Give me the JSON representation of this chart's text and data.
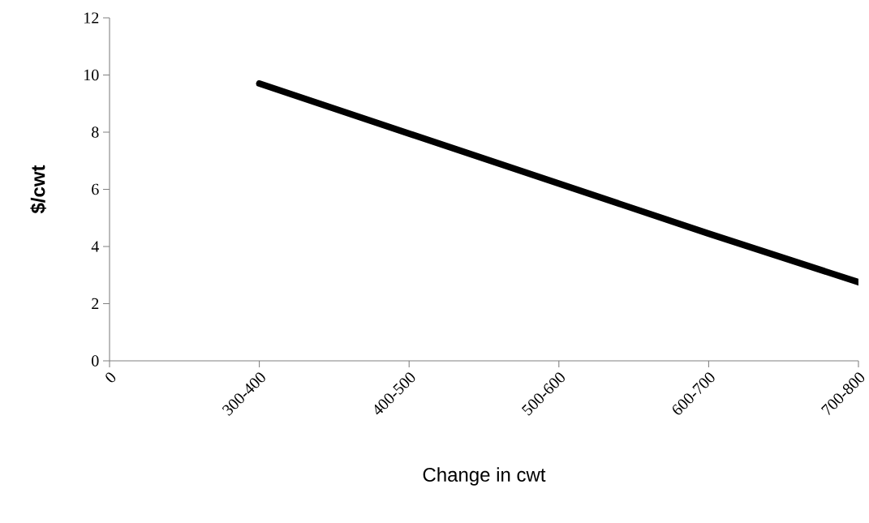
{
  "chart_data": {
    "type": "line",
    "xlabel": "Change in cwt",
    "ylabel": "$/cwt",
    "categories": [
      "0",
      "300-400",
      "400-500",
      "500-600",
      "600-700",
      "700-800"
    ],
    "series": [
      {
        "color": "#000000",
        "values": [
          null,
          9.7,
          7.95,
          6.2,
          4.45,
          2.75
        ]
      }
    ],
    "ylim": [
      0,
      12
    ],
    "yticks": [
      0,
      2,
      4,
      6,
      8,
      10,
      12
    ],
    "marker": "none",
    "line_style": "solid",
    "grid": false
  }
}
